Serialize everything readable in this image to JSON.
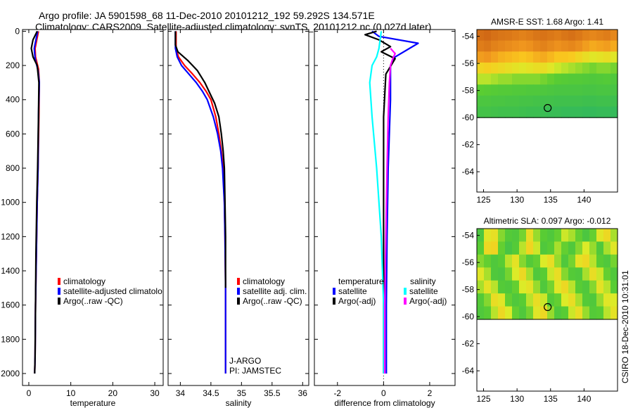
{
  "header": {
    "title_line1": "Argo profile: JA 5901598_68 11-Dec-2010 20101212_192 59.292S 134.571E",
    "title_line2": "Climatology: CARS2009. Satellite-adjusted climatology: synTS_20101212.nc (0.027d later)"
  },
  "footer": {
    "credit": "CSIRO 18-Dec-2010 10:31:01"
  },
  "colors": {
    "climatology": "#ff0000",
    "satellite": "#0000ff",
    "argo": "#000000",
    "temp_satellite": "#0000ff",
    "sal_satellite": "#00ffff",
    "sal_argo": "#ff00ff"
  },
  "chart_data": [
    {
      "type": "line",
      "id": "temperature",
      "xlabel": "temperature",
      "ylabel": "",
      "xlim": [
        -1.5,
        32
      ],
      "ylim": [
        2070,
        -10
      ],
      "xticks": [
        0,
        10,
        20,
        30
      ],
      "xtick_labels": [
        "0",
        "10",
        "20",
        "30"
      ],
      "yticks": [
        0,
        200,
        400,
        600,
        800,
        1000,
        1200,
        1400,
        1600,
        1800,
        2000
      ],
      "ytick_labels": [
        "0",
        "200",
        "400",
        "600",
        "800",
        "1000",
        "1200",
        "1400",
        "1600",
        "1800",
        "2000"
      ],
      "legend": [
        "climatology",
        "satellite-adjusted climatolo",
        "Argo(..raw -QC)"
      ],
      "series": [
        {
          "name": "climatology",
          "color_key": "climatology",
          "x": [
            2.3,
            1.9,
            1.5,
            1.6,
            2.3,
            2.5,
            2.4,
            2.2,
            2.0,
            1.8,
            1.6,
            1.5,
            1.4
          ],
          "y": [
            0,
            50,
            100,
            150,
            220,
            300,
            500,
            800,
            1000,
            1300,
            1600,
            1900,
            2000
          ]
        },
        {
          "name": "satellite-adjusted climatology",
          "color_key": "satellite",
          "x": [
            2.1,
            1.7,
            1.3,
            1.5,
            2.2,
            2.5,
            2.3,
            2.2,
            2.0,
            1.8,
            1.6,
            1.5,
            1.4
          ],
          "y": [
            0,
            50,
            100,
            160,
            230,
            300,
            500,
            800,
            1000,
            1300,
            1600,
            1900,
            2000
          ]
        },
        {
          "name": "Argo(..raw -QC)",
          "color_key": "argo",
          "x": [
            2.0,
            1.0,
            0.6,
            1.0,
            2.0,
            2.4,
            2.3,
            2.1,
            1.9,
            1.7,
            1.6,
            1.5,
            1.4
          ],
          "y": [
            0,
            50,
            100,
            150,
            200,
            300,
            500,
            800,
            1000,
            1300,
            1600,
            1900,
            2000
          ]
        }
      ]
    },
    {
      "type": "line",
      "id": "salinity",
      "xlabel": "salinity",
      "ylabel": "",
      "xlim": [
        33.8,
        36.1
      ],
      "ylim": [
        2070,
        -10
      ],
      "xticks": [
        34,
        34.5,
        35,
        35.5,
        36
      ],
      "xtick_labels": [
        "34",
        "34.5",
        "35",
        "35.5",
        "36"
      ],
      "legend": [
        "climatology",
        "satellite adj. clim.",
        "Argo(..raw -QC)"
      ],
      "annotations": [
        "J-ARGO",
        "PI: JAMSTEC"
      ],
      "series": [
        {
          "name": "climatology",
          "color_key": "climatology",
          "x": [
            33.93,
            33.93,
            33.97,
            34.07,
            34.2,
            34.32,
            34.42,
            34.5,
            34.58,
            34.63,
            34.67,
            34.7,
            34.72,
            34.73,
            34.74,
            34.74
          ],
          "y": [
            0,
            100,
            150,
            200,
            250,
            300,
            350,
            400,
            500,
            600,
            700,
            800,
            1000,
            1200,
            1500,
            2000
          ]
        },
        {
          "name": "satellite adj. clim.",
          "color_key": "satellite",
          "x": [
            33.92,
            33.92,
            33.95,
            34.02,
            34.14,
            34.26,
            34.36,
            34.44,
            34.54,
            34.61,
            34.66,
            34.69,
            34.72,
            34.73,
            34.74,
            34.74
          ],
          "y": [
            0,
            100,
            150,
            200,
            250,
            300,
            350,
            400,
            500,
            600,
            700,
            800,
            1000,
            1200,
            1500,
            2000
          ]
        },
        {
          "name": "Argo(..raw -QC)",
          "color_key": "argo",
          "x": [
            33.92,
            33.92,
            33.96,
            34.12,
            34.28,
            34.4,
            34.48,
            34.56,
            34.63,
            34.67,
            34.7,
            34.72,
            34.73,
            34.74,
            34.74
          ],
          "y": [
            0,
            80,
            120,
            170,
            230,
            300,
            360,
            420,
            500,
            600,
            700,
            800,
            1000,
            1200,
            1500
          ]
        }
      ]
    },
    {
      "type": "line",
      "id": "difference",
      "xlabel": "difference from climatology",
      "ylabel": "",
      "xlim": [
        -3,
        3.1
      ],
      "ylim": [
        2070,
        -10
      ],
      "xticks": [
        -2,
        0,
        2
      ],
      "xtick_labels": [
        "-2",
        "0",
        "2"
      ],
      "legend_groups": [
        {
          "heading": "temperature",
          "items": [
            "satellite",
            "Argo(-adj)"
          ]
        },
        {
          "heading": "salinity",
          "items": [
            "satellite",
            "Argo(-adj)"
          ]
        }
      ],
      "series": [
        {
          "name": "temperature satellite",
          "color_key": "temp_satellite",
          "x": [
            -0.5,
            -0.2,
            1.5,
            0.5,
            0.3,
            0.3,
            0.2,
            0.15,
            0.12,
            0.12
          ],
          "y": [
            0,
            30,
            70,
            150,
            200,
            400,
            800,
            1200,
            1600,
            2000
          ]
        },
        {
          "name": "temperature Argo(-adj)",
          "color_key": "argo",
          "x": [
            -0.3,
            -0.8,
            -0.2,
            0.3,
            -0.1,
            0.5,
            0.1,
            0.0,
            0.0,
            0.0
          ],
          "y": [
            0,
            20,
            50,
            90,
            120,
            160,
            250,
            500,
            1000,
            2000
          ]
        },
        {
          "name": "salinity satellite",
          "color_key": "sal_satellite",
          "x": [
            -0.1,
            -0.2,
            -0.3,
            -0.5,
            -0.6,
            -0.5,
            -0.3,
            -0.1,
            0.0,
            0.0
          ],
          "y": [
            0,
            100,
            150,
            200,
            300,
            500,
            800,
            1200,
            1600,
            2000
          ]
        },
        {
          "name": "salinity Argo(-adj)",
          "color_key": "sal_argo",
          "x": [
            0.3,
            0.5,
            0.4,
            0.3,
            0.25,
            0.2,
            0.15,
            0.1,
            0.05,
            0.05
          ],
          "y": [
            100,
            130,
            160,
            200,
            300,
            500,
            800,
            1200,
            1600,
            2000
          ]
        }
      ]
    },
    {
      "type": "heatmap",
      "id": "sst-map",
      "title": "AMSR-E SST: 1.68 Argo: 1.41",
      "xlim": [
        124,
        145
      ],
      "ylim": [
        -65.5,
        -53.5
      ],
      "data_ylim": [
        -60,
        -53.5
      ],
      "xticks": [
        125,
        130,
        135,
        140
      ],
      "xtick_labels": [
        "125",
        "130",
        "135",
        "140"
      ],
      "yticks": [
        -54,
        -56,
        -58,
        -60,
        -62,
        -64
      ],
      "ytick_labels": [
        "-54",
        "-56",
        "-58",
        "-60",
        "-62",
        "-64"
      ],
      "marker": {
        "lon": 134.571,
        "lat": -59.292
      },
      "colormap": "orange-yellow-green",
      "rows": [
        [
          0.96,
          0.98,
          0.95,
          0.93,
          0.92,
          0.9,
          0.88,
          0.9,
          0.93,
          0.94,
          0.92,
          0.9,
          0.93,
          0.95,
          0.92,
          0.88,
          0.86,
          0.88,
          0.9,
          0.86
        ],
        [
          0.9,
          0.92,
          0.88,
          0.86,
          0.84,
          0.82,
          0.8,
          0.82,
          0.86,
          0.88,
          0.85,
          0.82,
          0.84,
          0.86,
          0.83,
          0.78,
          0.74,
          0.76,
          0.78,
          0.74
        ],
        [
          0.78,
          0.8,
          0.76,
          0.72,
          0.7,
          0.68,
          0.66,
          0.68,
          0.72,
          0.74,
          0.7,
          0.66,
          0.66,
          0.64,
          0.6,
          0.56,
          0.52,
          0.54,
          0.56,
          0.52
        ],
        [
          0.6,
          0.62,
          0.6,
          0.58,
          0.56,
          0.54,
          0.52,
          0.54,
          0.56,
          0.56,
          0.52,
          0.48,
          0.46,
          0.44,
          0.42,
          0.4,
          0.38,
          0.4,
          0.4,
          0.38
        ],
        [
          0.46,
          0.46,
          0.44,
          0.42,
          0.42,
          0.4,
          0.4,
          0.4,
          0.4,
          0.38,
          0.36,
          0.34,
          0.33,
          0.32,
          0.32,
          0.31,
          0.3,
          0.31,
          0.32,
          0.3
        ],
        [
          0.35,
          0.34,
          0.33,
          0.32,
          0.32,
          0.31,
          0.31,
          0.3,
          0.3,
          0.29,
          0.28,
          0.27,
          0.27,
          0.27,
          0.27,
          0.26,
          0.26,
          0.27,
          0.27,
          0.26
        ],
        [
          0.28,
          0.28,
          0.27,
          0.27,
          0.26,
          0.26,
          0.25,
          0.25,
          0.24,
          0.23,
          0.23,
          0.22,
          0.22,
          0.22,
          0.22,
          0.21,
          0.21,
          0.22,
          0.22,
          0.21
        ],
        [
          0.24,
          0.24,
          0.23,
          0.22,
          0.22,
          0.22,
          0.21,
          0.2,
          0.2,
          0.19,
          0.18,
          0.18,
          0.17,
          0.17,
          0.17,
          0.16,
          0.16,
          0.17,
          0.17,
          0.16
        ]
      ]
    },
    {
      "type": "heatmap",
      "id": "sla-map",
      "title": "Altimetric SLA: 0.097 Argo: -0.012",
      "xlim": [
        124,
        145
      ],
      "ylim": [
        -65.5,
        -53.5
      ],
      "data_ylim": [
        -60.2,
        -53.5
      ],
      "xticks": [
        125,
        130,
        135,
        140
      ],
      "xtick_labels": [
        "125",
        "130",
        "135",
        "140"
      ],
      "yticks": [
        -54,
        -56,
        -58,
        -60,
        -62,
        -64
      ],
      "ytick_labels": [
        "-54",
        "-56",
        "-58",
        "-60",
        "-62",
        "-64"
      ],
      "marker": {
        "lon": 134.571,
        "lat": -59.292
      },
      "colormap": "orange-yellow-green",
      "rows": [
        [
          0.28,
          0.52,
          0.55,
          0.4,
          0.32,
          0.3,
          0.38,
          0.56,
          0.42,
          0.34,
          0.3,
          0.36,
          0.48,
          0.44,
          0.36,
          0.28,
          0.36,
          0.52,
          0.58,
          0.44
        ],
        [
          0.34,
          0.58,
          0.6,
          0.36,
          0.26,
          0.32,
          0.46,
          0.6,
          0.48,
          0.3,
          0.34,
          0.44,
          0.36,
          0.3,
          0.4,
          0.5,
          0.42,
          0.3,
          0.44,
          0.52
        ],
        [
          0.4,
          0.36,
          0.3,
          0.34,
          0.46,
          0.54,
          0.4,
          0.32,
          0.36,
          0.5,
          0.56,
          0.42,
          0.3,
          0.38,
          0.54,
          0.58,
          0.46,
          0.34,
          0.3,
          0.38
        ],
        [
          0.52,
          0.44,
          0.3,
          0.28,
          0.38,
          0.5,
          0.58,
          0.44,
          0.3,
          0.34,
          0.48,
          0.56,
          0.4,
          0.32,
          0.3,
          0.44,
          0.56,
          0.48,
          0.36,
          0.3
        ],
        [
          0.44,
          0.54,
          0.46,
          0.32,
          0.3,
          0.36,
          0.5,
          0.54,
          0.42,
          0.3,
          0.38,
          0.52,
          0.58,
          0.46,
          0.34,
          0.3,
          0.4,
          0.54,
          0.46,
          0.34
        ],
        [
          0.32,
          0.4,
          0.56,
          0.52,
          0.36,
          0.3,
          0.34,
          0.46,
          0.56,
          0.48,
          0.32,
          0.36,
          0.5,
          0.56,
          0.44,
          0.32,
          0.3,
          0.42,
          0.52,
          0.5
        ],
        [
          0.3,
          0.34,
          0.46,
          0.58,
          0.5,
          0.36,
          0.3,
          0.38,
          0.52,
          0.58,
          0.42,
          0.3,
          0.34,
          0.48,
          0.56,
          0.42,
          0.32,
          0.34,
          0.46,
          0.54
        ]
      ]
    }
  ]
}
